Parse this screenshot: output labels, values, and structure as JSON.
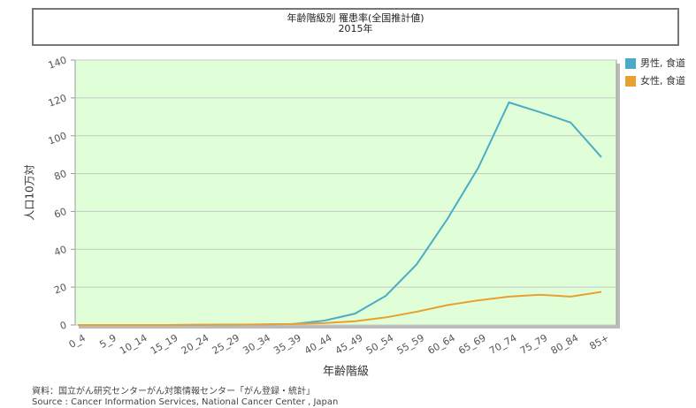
{
  "chart_data": {
    "type": "line",
    "title": "年齢階級別 罹患率(全国推計値)",
    "subtitle": "2015年",
    "x_label": "年齢階級",
    "y_label": "人口10万対",
    "categories": [
      "0_4",
      "5_9",
      "10_14",
      "15_19",
      "20_24",
      "25_29",
      "30_34",
      "35_39",
      "40_44",
      "45_49",
      "50_54",
      "55_59",
      "60_64",
      "65_69",
      "70_74",
      "75_79",
      "80_84",
      "85+"
    ],
    "series": [
      {
        "name": "男性, 食道",
        "color": "#4bacc6",
        "values": [
          0,
          0,
          0,
          0,
          0.1,
          0.2,
          0.3,
          0.5,
          2.3,
          6,
          15.4,
          32,
          56,
          83,
          117.6,
          112.5,
          107,
          88.7
        ]
      },
      {
        "name": "女性, 食道",
        "color": "#e8a030",
        "values": [
          0,
          0,
          0,
          0,
          0.1,
          0.2,
          0.3,
          0.5,
          1.0,
          2.0,
          4.0,
          7,
          10.5,
          13,
          15,
          16,
          15,
          17.5
        ]
      }
    ],
    "ylim": [
      0,
      140
    ],
    "yticks": [
      0,
      20,
      40,
      60,
      80,
      100,
      120,
      140
    ],
    "grid": true,
    "source": [
      "資料：国立がん研究センターがん対策情報センター「がん登録・統計」",
      "Source : Cancer Information Services, National Cancer Center , Japan"
    ]
  }
}
